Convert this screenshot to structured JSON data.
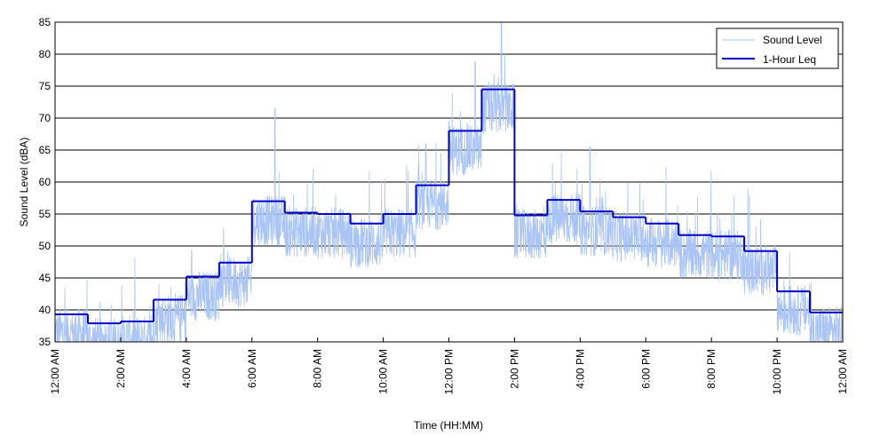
{
  "chart_data": {
    "type": "line",
    "xlabel": "Time (HH:MM)",
    "ylabel": "Sound Level (dBA)",
    "ylim": [
      35,
      85
    ],
    "xlim_hours": [
      0,
      24
    ],
    "grid": "horizontal",
    "legend_position": "top-right",
    "y_ticks": [
      35,
      40,
      45,
      50,
      55,
      60,
      65,
      70,
      75,
      80,
      85
    ],
    "x_ticks": [
      {
        "hour": 0,
        "label": "12:00 AM"
      },
      {
        "hour": 2,
        "label": "2:00 AM"
      },
      {
        "hour": 4,
        "label": "4:00 AM"
      },
      {
        "hour": 6,
        "label": "6:00 AM"
      },
      {
        "hour": 8,
        "label": "8:00 AM"
      },
      {
        "hour": 10,
        "label": "10:00 AM"
      },
      {
        "hour": 12,
        "label": "12:00 PM"
      },
      {
        "hour": 14,
        "label": "2:00 PM"
      },
      {
        "hour": 16,
        "label": "4:00 PM"
      },
      {
        "hour": 18,
        "label": "6:00 PM"
      },
      {
        "hour": 20,
        "label": "8:00 PM"
      },
      {
        "hour": 22,
        "label": "10:00 PM"
      },
      {
        "hour": 24,
        "label": "12:00 AM"
      }
    ],
    "series": [
      {
        "name": "Sound Level",
        "color": "#a9c4f5",
        "style": "thin-noisy",
        "approximate_hourly_center": [
          39.3,
          37.9,
          38.2,
          41.6,
          45.2,
          47.4,
          57.0,
          55.2,
          55.0,
          53.5,
          55.0,
          59.5,
          68.0,
          74.5,
          54.8,
          57.2,
          55.4,
          54.5,
          53.5,
          51.7,
          51.5,
          49.2,
          42.9,
          39.6
        ],
        "peak_values": [
          {
            "hour": 6.7,
            "value": 71.5
          },
          {
            "hour": 11.3,
            "value": 66
          },
          {
            "hour": 12.0,
            "value": 69.5
          },
          {
            "hour": 12.8,
            "value": 78.8
          },
          {
            "hour": 13.6,
            "value": 85
          },
          {
            "hour": 16.3,
            "value": 65.5
          }
        ]
      },
      {
        "name": "1-Hour Leq",
        "color": "#0000cc",
        "style": "step",
        "hours": [
          0,
          1,
          2,
          3,
          4,
          5,
          6,
          7,
          8,
          9,
          10,
          11,
          12,
          13,
          14,
          15,
          16,
          17,
          18,
          19,
          20,
          21,
          22,
          23
        ],
        "values": [
          39.3,
          37.9,
          38.2,
          41.6,
          45.2,
          47.4,
          57.0,
          55.2,
          55.0,
          53.5,
          55.0,
          59.5,
          68.0,
          74.5,
          54.8,
          57.2,
          55.4,
          54.5,
          53.5,
          51.7,
          51.5,
          49.2,
          42.9,
          39.6
        ]
      }
    ]
  }
}
